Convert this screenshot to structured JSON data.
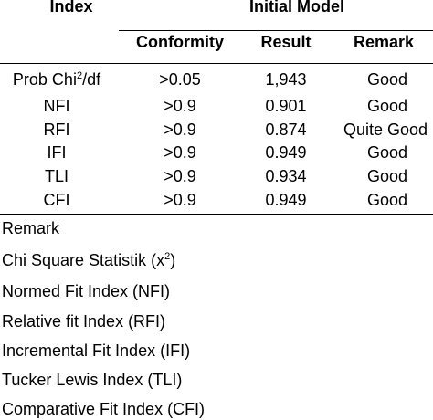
{
  "table": {
    "headers": {
      "index": "Index",
      "initial_model": "Initial Model",
      "conformity": "Conformity",
      "result": "Result",
      "remark": "Remark"
    },
    "rows": [
      {
        "index_main": "Prob Chi",
        "index_sup": "2",
        "index_tail": "/df",
        "conformity": ">0.05",
        "result": "1,943",
        "remark": "Good"
      },
      {
        "index": "NFI",
        "conformity": ">0.9",
        "result": "0.901",
        "remark": "Good"
      },
      {
        "index": "RFI",
        "conformity": ">0.9",
        "result": "0.874",
        "remark": "Quite Good"
      },
      {
        "index": "IFI",
        "conformity": ">0.9",
        "result": "0.949",
        "remark": "Good"
      },
      {
        "index": "TLI",
        "conformity": ">0.9",
        "result": "0.934",
        "remark": "Good"
      },
      {
        "index": "CFI",
        "conformity": ">0.9",
        "result": "0.949",
        "remark": "Good"
      }
    ]
  },
  "notes": {
    "title": "Remark",
    "chi_main": "Chi Square Statistik (x",
    "chi_sup": "2",
    "chi_tail": ")",
    "items": [
      "Normed Fit Index (NFI)",
      "Relative fit Index (RFI)",
      "Incremental Fit Index (IFI)",
      "Tucker Lewis Index (TLI)",
      "Comparative Fit Index (CFI)"
    ]
  }
}
